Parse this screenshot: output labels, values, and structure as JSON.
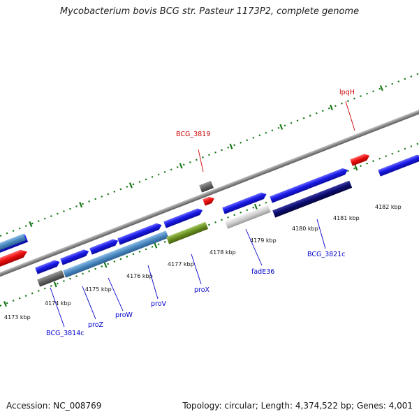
{
  "title": "Mycobacterium bovis BCG str. Pasteur 1173P2, complete genome",
  "footer": {
    "accession": "Accession: NC_008769",
    "summary": "Topology: circular; Length: 4,374,522 bp; Genes: 4,001"
  },
  "colors": {
    "gene_blue": "#1818e8",
    "gene_red": "#e81010",
    "gene_gray": "#666666",
    "gene_steel": "#4a88c0",
    "gene_olive": "#6a9020",
    "gene_navy": "#0a0a70",
    "gene_light": "#c8c8c8",
    "tick_green": "#1a7a1a",
    "label_blue": "#0000cc",
    "label_red": "#cc0000"
  },
  "ticks": [
    {
      "label": "4173 kbp",
      "pos": 4173
    },
    {
      "label": "4174 kbp",
      "pos": 4174
    },
    {
      "label": "4175 kbp",
      "pos": 4175
    },
    {
      "label": "4176 kbp",
      "pos": 4176
    },
    {
      "label": "4177 kbp",
      "pos": 4177
    },
    {
      "label": "4178 kbp",
      "pos": 4178
    },
    {
      "label": "4179 kbp",
      "pos": 4179
    },
    {
      "label": "4180 kbp",
      "pos": 4180
    },
    {
      "label": "4181 kbp",
      "pos": 4181
    },
    {
      "label": "4182 kbp",
      "pos": 4182
    }
  ],
  "genes": [
    {
      "id": "BCG_3814c",
      "label": "BCG_3814c"
    },
    {
      "id": "proZ",
      "label": "proZ"
    },
    {
      "id": "proW",
      "label": "proW"
    },
    {
      "id": "proV",
      "label": "proV"
    },
    {
      "id": "proX",
      "label": "proX"
    },
    {
      "id": "fadE36",
      "label": "fadE36"
    },
    {
      "id": "BCG_3821c",
      "label": "BCG_3821c"
    },
    {
      "id": "BCG_3819",
      "label": "BCG_3819"
    },
    {
      "id": "lpqH",
      "label": "lpqH"
    }
  ]
}
